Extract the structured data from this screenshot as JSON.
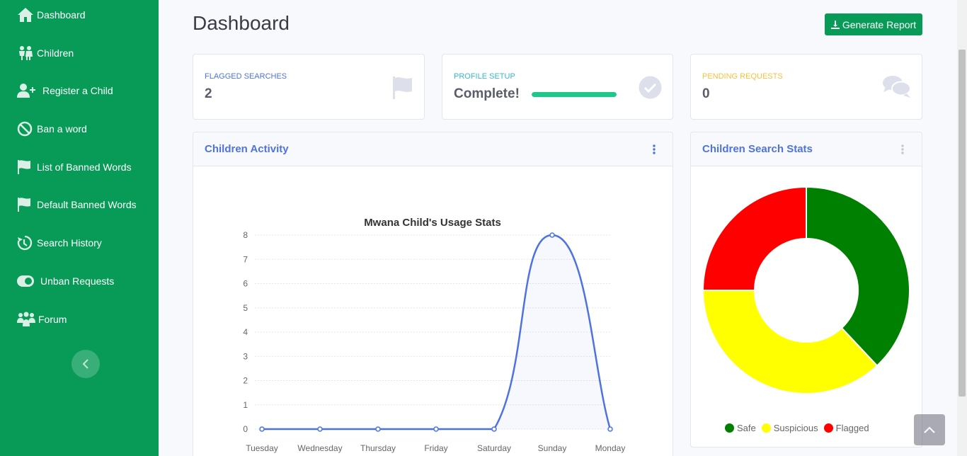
{
  "sidebar": {
    "items": [
      {
        "label": "Dashboard",
        "icon": "home-icon"
      },
      {
        "label": "Children",
        "icon": "children-icon"
      },
      {
        "label": "Register a Child",
        "icon": "user-plus-icon"
      },
      {
        "label": "Ban a word",
        "icon": "ban-icon"
      },
      {
        "label": "List of Banned Words",
        "icon": "flag-icon"
      },
      {
        "label": "Default Banned Words",
        "icon": "flag-icon"
      },
      {
        "label": "Search History",
        "icon": "history-icon"
      },
      {
        "label": "Unban Requests",
        "icon": "toggle-icon"
      },
      {
        "label": "Forum",
        "icon": "users-icon"
      }
    ],
    "collapse_icon": "chevron-left-icon"
  },
  "header": {
    "title": "Dashboard",
    "report_button": "Generate Report",
    "report_icon": "download-icon"
  },
  "stats": {
    "flagged": {
      "label": "Flagged Searches",
      "value": "2",
      "icon": "flag-icon",
      "color": "#4e73df"
    },
    "profile": {
      "label": "Profile Setup",
      "value": "Complete!",
      "progress": 1.0,
      "icon": "check-circle-icon",
      "color": "#36b9cc"
    },
    "pending": {
      "label": "Pending Requests",
      "value": "0",
      "icon": "comments-icon",
      "color": "#f6c23e"
    }
  },
  "activity_card": {
    "title": "Children Activity"
  },
  "search_card": {
    "title": "Children Search Stats"
  },
  "colors": {
    "brand": "#079b57",
    "accent": "#4e73df",
    "safe": "#008000",
    "suspicious": "#ffff00",
    "flagged": "#ff0000"
  },
  "chart_data": [
    {
      "type": "line",
      "title": "Mwana Child's Usage Stats",
      "x": [
        "Tuesday",
        "Wednesday",
        "Thursday",
        "Friday",
        "Saturday",
        "Sunday",
        "Monday"
      ],
      "series": [
        {
          "values": [
            0,
            0,
            0,
            0,
            0,
            8,
            0
          ]
        }
      ],
      "ylim": [
        0,
        8
      ],
      "yticks": [
        "0",
        "1",
        "2",
        "3",
        "4",
        "5",
        "6",
        "7",
        "8"
      ],
      "grid": true
    },
    {
      "type": "pie",
      "categories": [
        "Safe",
        "Suspicious",
        "Flagged"
      ],
      "values": [
        38,
        37,
        25
      ],
      "colors": [
        "#008000",
        "#ffff00",
        "#ff0000"
      ],
      "legend": "bottom"
    }
  ]
}
